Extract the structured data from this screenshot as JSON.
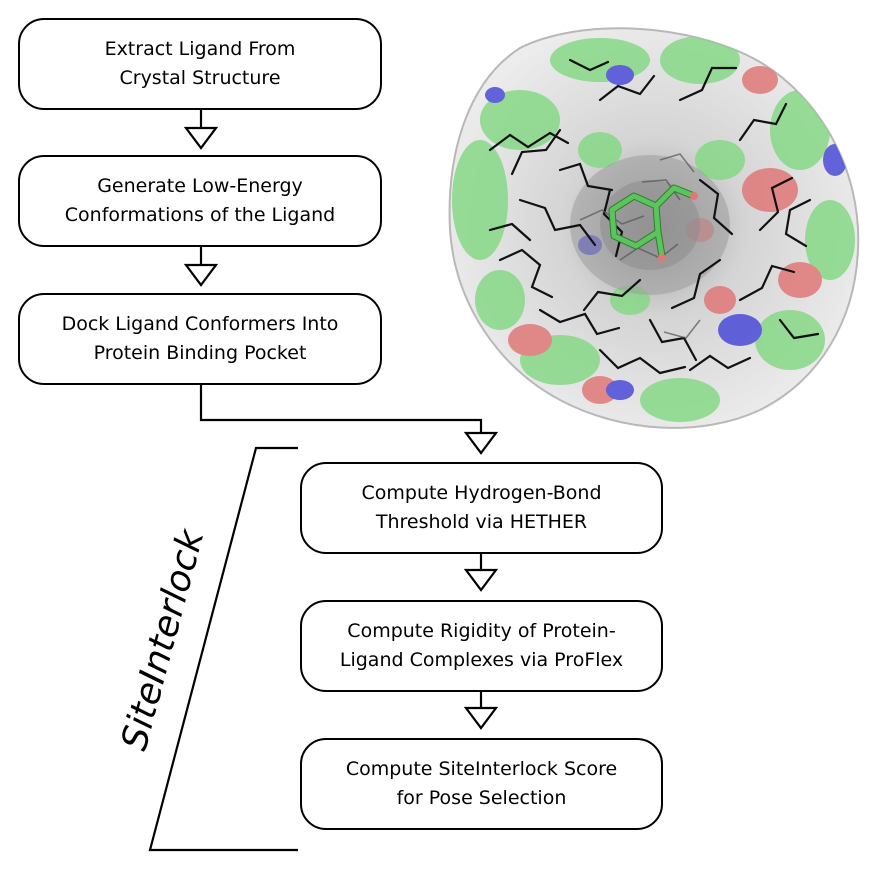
{
  "diagram": {
    "steps": [
      {
        "line1": "Extract Ligand From",
        "line2": "Crystal Structure"
      },
      {
        "line1": "Generate Low-Energy",
        "line2": "Conformations of the Ligand"
      },
      {
        "line1": "Dock Ligand Conformers Into",
        "line2": "Protein Binding Pocket"
      },
      {
        "line1": "Compute Hydrogen-Bond",
        "line2": "Threshold via HETHER"
      },
      {
        "line1": "Compute Rigidity of Protein-",
        "line2": "Ligand Complexes via ProFlex"
      },
      {
        "line1": "Compute SiteInterlock Score",
        "line2": "for Pose Selection"
      }
    ],
    "group_label": "SiteInterlock",
    "colors": {
      "surface_white": "#e8e8e8",
      "surface_green": "#86d886",
      "surface_red": "#e07878",
      "surface_blue": "#4a4ad8",
      "ligand": "#5cc45c",
      "bonds": "#111111"
    }
  }
}
